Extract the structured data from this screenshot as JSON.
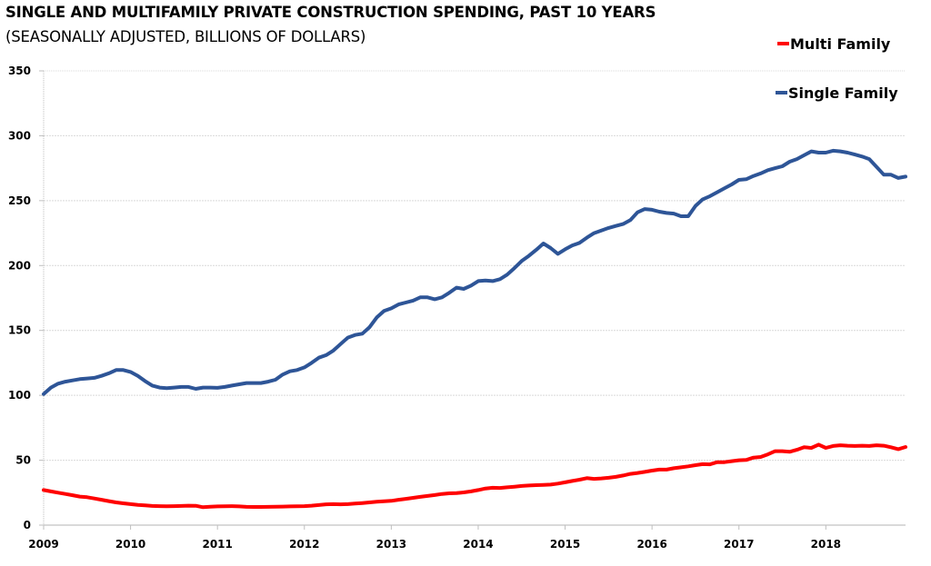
{
  "chart_data": {
    "type": "line",
    "title": "SINGLE AND MULTIFAMILY PRIVATE CONSTRUCTION SPENDING, PAST 10 YEARS",
    "subtitle": "(SEASONALLY ADJUSTED, BILLIONS OF DOLLARS)",
    "xlabel": "",
    "ylabel": "",
    "ylim": [
      0,
      350
    ],
    "yticks": [
      0,
      50,
      100,
      150,
      200,
      250,
      300,
      350
    ],
    "ytick_labels": [
      "0",
      "50",
      "100",
      "150",
      "200",
      "250",
      "300",
      "350"
    ],
    "xlim": [
      2009,
      2018.917
    ],
    "xticks": [
      2009,
      2010,
      2011,
      2012,
      2013,
      2014,
      2015,
      2016,
      2017,
      2018
    ],
    "xtick_labels": [
      "2009",
      "2010",
      "2011",
      "2012",
      "2013",
      "2014",
      "2015",
      "2016",
      "2017",
      "2018"
    ],
    "grid": true,
    "legend_position": "top-right",
    "x_frequency": "monthly, Jan 2009 - Dec 2018",
    "series": [
      {
        "name": "Multi Family",
        "color": "#ff0000",
        "values": [
          27,
          26,
          25,
          24,
          23,
          22,
          21.5,
          20.5,
          19.5,
          18.5,
          17.5,
          16.8,
          16.2,
          15.6,
          15.2,
          14.8,
          14.6,
          14.5,
          14.6,
          14.8,
          15,
          14.9,
          13.8,
          14.2,
          14.4,
          14.5,
          14.6,
          14.4,
          14.1,
          14,
          14,
          14.1,
          14.2,
          14.3,
          14.4,
          14.5,
          14.6,
          15,
          15.5,
          16,
          16.2,
          16,
          16.2,
          16.6,
          17,
          17.5,
          18,
          18.4,
          18.7,
          19.5,
          20.2,
          21,
          21.8,
          22.5,
          23.2,
          24,
          24.5,
          24.7,
          25.2,
          26,
          27,
          28.2,
          28.8,
          28.6,
          29.1,
          29.6,
          30.2,
          30.5,
          30.8,
          31,
          31.2,
          32,
          33,
          34,
          35,
          36.2,
          35.6,
          36,
          36.5,
          37.2,
          38.2,
          39.5,
          40.2,
          41,
          42,
          42.8,
          42.8,
          43.8,
          44.5,
          45.3,
          46.2,
          47,
          46.8,
          48.5,
          48.5,
          49.3,
          50,
          50.2,
          52,
          52.5,
          54.5,
          57,
          57,
          56.5,
          58,
          60,
          59.5,
          62,
          59.5,
          61,
          61.5,
          61.2,
          61,
          61.2,
          61,
          61.5,
          61.2,
          60,
          58.5,
          60.2
        ]
      },
      {
        "name": "Single Family",
        "color": "#2e5597",
        "values": [
          101,
          106,
          109,
          110.5,
          111.5,
          112.5,
          113,
          113.5,
          115,
          117,
          119.5,
          119.5,
          118,
          115,
          111,
          107.5,
          106,
          105.5,
          106,
          106.5,
          106.5,
          105,
          106,
          106,
          105.8,
          106.5,
          107.5,
          108.5,
          109.5,
          109.5,
          109.5,
          110.5,
          112,
          116,
          118.5,
          119.5,
          121.5,
          125,
          129,
          131,
          134.5,
          139.5,
          144.5,
          146.5,
          147.5,
          152.5,
          160,
          165,
          167,
          170,
          171.5,
          173,
          175.5,
          175.5,
          174,
          175.5,
          179,
          183,
          182,
          184.5,
          188,
          188.5,
          188,
          189.5,
          193,
          198,
          203.5,
          207.5,
          212,
          217,
          213.5,
          209,
          212.5,
          215.5,
          217.5,
          221.5,
          225,
          227,
          229,
          230.5,
          232,
          235,
          241,
          243.5,
          243,
          241.5,
          240.5,
          240,
          238,
          238,
          246,
          251,
          253.5,
          256.5,
          259.5,
          262.5,
          266,
          266.5,
          269,
          271,
          273.5,
          275,
          276.5,
          280,
          282,
          285,
          288,
          287,
          287,
          288.5,
          288,
          287,
          285.5,
          284,
          282,
          276,
          270,
          270,
          267.5,
          268.5
        ]
      }
    ]
  }
}
